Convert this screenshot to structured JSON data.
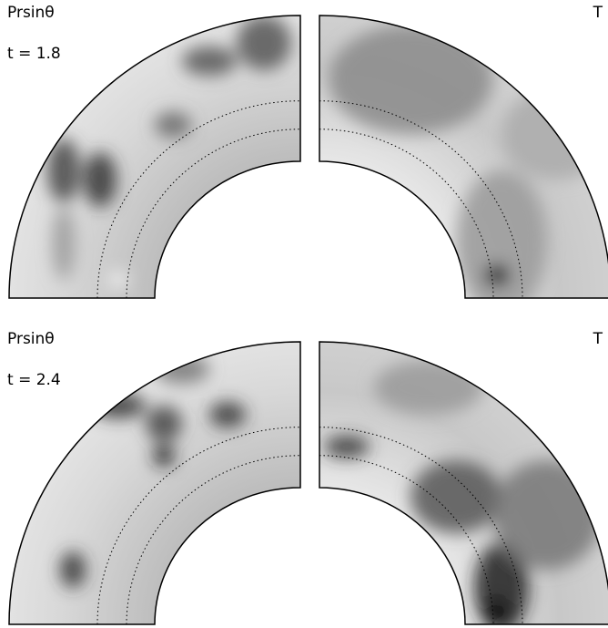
{
  "panels": [
    {
      "left_label": "Prsinθ",
      "right_label": "T",
      "time": "t = 1.8"
    },
    {
      "left_label": "Prsinθ",
      "right_label": "T",
      "time": "t = 2.4"
    }
  ]
}
